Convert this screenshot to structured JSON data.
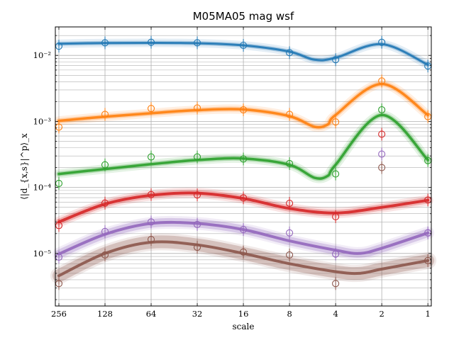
{
  "chart_data": {
    "type": "line",
    "title": "M05MA05 mag wsf",
    "xlabel": "scale",
    "ylabel": "⟨|d_{x,s}|^p⟩_x",
    "x_scale": "log2-reversed",
    "y_scale": "log",
    "xlim": [
      270,
      0.95
    ],
    "ylim": [
      1.6e-06,
      0.027
    ],
    "grid": true,
    "legend": "none",
    "x_ticks": [
      256,
      128,
      64,
      32,
      16,
      8,
      4,
      2,
      1
    ],
    "x_tick_labels": [
      "256",
      "128",
      "64",
      "32",
      "16",
      "8",
      "4",
      "2",
      "1"
    ],
    "y_major_ticks": [
      1e-05,
      0.0001,
      0.001,
      0.01
    ],
    "y_tick_labels": [
      "10⁻⁵",
      "10⁻⁴",
      "10⁻³",
      "10⁻²"
    ],
    "x": [
      256,
      128,
      64,
      32,
      16,
      8,
      4,
      2,
      1
    ],
    "series": [
      {
        "color": "#1f77b4",
        "points": [
          0.0138,
          0.0155,
          0.0158,
          0.0155,
          0.0142,
          0.011,
          0.0086,
          0.0158,
          0.0069
        ],
        "fit_x": [
          256,
          128,
          64,
          32,
          16,
          8,
          5.5,
          4,
          2,
          1
        ],
        "fit_y": [
          0.015,
          0.0154,
          0.0155,
          0.0153,
          0.0142,
          0.0114,
          0.0086,
          0.0092,
          0.0148,
          0.0072
        ]
      },
      {
        "color": "#ff7f0e",
        "points": [
          0.00082,
          0.00128,
          0.00157,
          0.0016,
          0.0015,
          0.00128,
          0.00098,
          0.0041,
          0.00118
        ],
        "fit_x": [
          256,
          128,
          64,
          32,
          16,
          8,
          5.5,
          4.5,
          4,
          2,
          1
        ],
        "fit_y": [
          0.00102,
          0.00118,
          0.00133,
          0.00148,
          0.00152,
          0.0012,
          0.00083,
          0.0009,
          0.00125,
          0.0037,
          0.00125
        ]
      },
      {
        "color": "#2ca02c",
        "points": [
          0.000115,
          0.00022,
          0.00029,
          0.00029,
          0.00027,
          0.00023,
          0.00016,
          0.0015,
          0.000255
        ],
        "fit_x": [
          256,
          128,
          64,
          32,
          16,
          8,
          5.5,
          4.5,
          4,
          2,
          1
        ],
        "fit_y": [
          0.00016,
          0.00019,
          0.000225,
          0.00026,
          0.000275,
          0.00022,
          0.00014,
          0.00015,
          0.00022,
          0.00125,
          0.00026
        ]
      },
      {
        "color": "#d62728",
        "points": [
          2.65e-05,
          5.8e-05,
          7.8e-05,
          7.7e-05,
          6.95e-05,
          5.75e-05,
          3.6e-05,
          0.00064,
          6.45e-05
        ],
        "fit_x": [
          256,
          128,
          64,
          32,
          16,
          8,
          4,
          2,
          1
        ],
        "fit_y": [
          3e-05,
          5.6e-05,
          7.6e-05,
          8.2e-05,
          6.8e-05,
          4.8e-05,
          4.1e-05,
          5e-05,
          6.4e-05
        ]
      },
      {
        "color": "#9467bd",
        "points": [
          8.8e-06,
          2.15e-05,
          3e-05,
          2.75e-05,
          2.3e-05,
          2.05e-05,
          9.8e-06,
          0.00032,
          2.05e-05
        ],
        "fit_x": [
          256,
          128,
          64,
          32,
          16,
          8,
          4,
          2.8,
          2,
          1
        ],
        "fit_y": [
          9.8e-06,
          1.95e-05,
          2.85e-05,
          2.85e-05,
          2.3e-05,
          1.55e-05,
          1.12e-05,
          1e-05,
          1.2e-05,
          2.05e-05
        ]
      },
      {
        "color": "#8c564b",
        "points": [
          3.5e-06,
          9.5e-06,
          1.63e-05,
          1.24e-05,
          1.05e-05,
          9.5e-06,
          3.5e-06,
          0.0002,
          7.8e-06
        ],
        "fit_x": [
          256,
          128,
          64,
          32,
          16,
          8,
          4,
          2.8,
          2,
          1
        ],
        "fit_y": [
          4.6e-06,
          1e-05,
          1.48e-05,
          1.35e-05,
          1e-05,
          7e-06,
          5.3e-06,
          5e-06,
          5.8e-06,
          7.8e-06
        ]
      }
    ]
  }
}
